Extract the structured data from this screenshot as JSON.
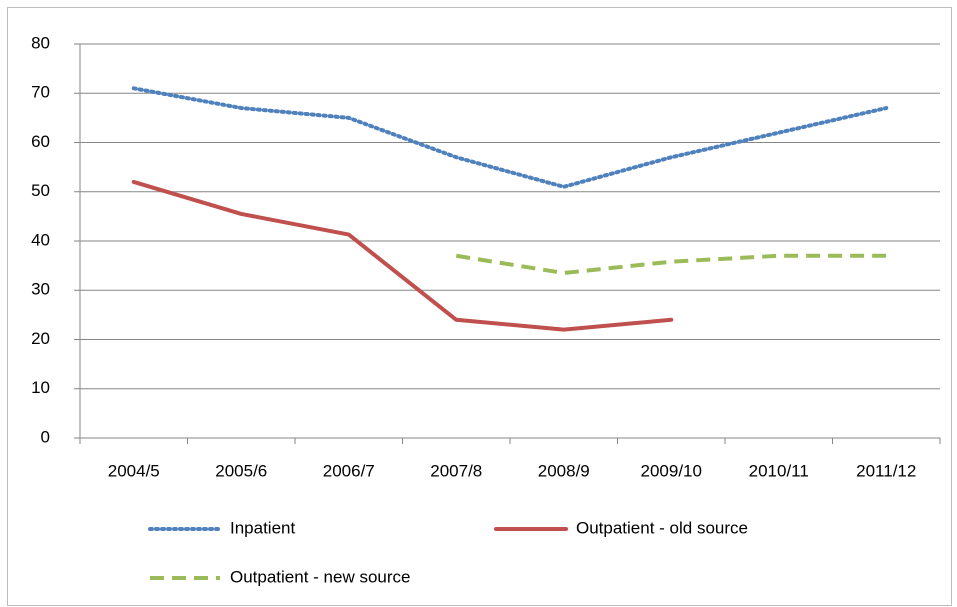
{
  "chart_data": {
    "type": "line",
    "categories": [
      "2004/5",
      "2005/6",
      "2006/7",
      "2007/8",
      "2008/9",
      "2009/10",
      "2010/11",
      "2011/12"
    ],
    "series": [
      {
        "name": "Inpatient",
        "color": "#4f81bd",
        "style": "dotted",
        "values": [
          71,
          67,
          65,
          57,
          51,
          57,
          62,
          67
        ]
      },
      {
        "name": "Outpatient - old source",
        "color": "#c0504d",
        "style": "solid",
        "values": [
          52,
          45.5,
          41.3,
          24,
          22,
          24,
          null,
          null
        ]
      },
      {
        "name": "Outpatient - new source",
        "color": "#9bbb59",
        "style": "dashed",
        "values": [
          null,
          null,
          null,
          37,
          33.5,
          35.8,
          37,
          37
        ]
      }
    ],
    "ylim": [
      0,
      80
    ],
    "yticks": [
      0,
      10,
      20,
      30,
      40,
      50,
      60,
      70,
      80
    ],
    "grid": true
  }
}
